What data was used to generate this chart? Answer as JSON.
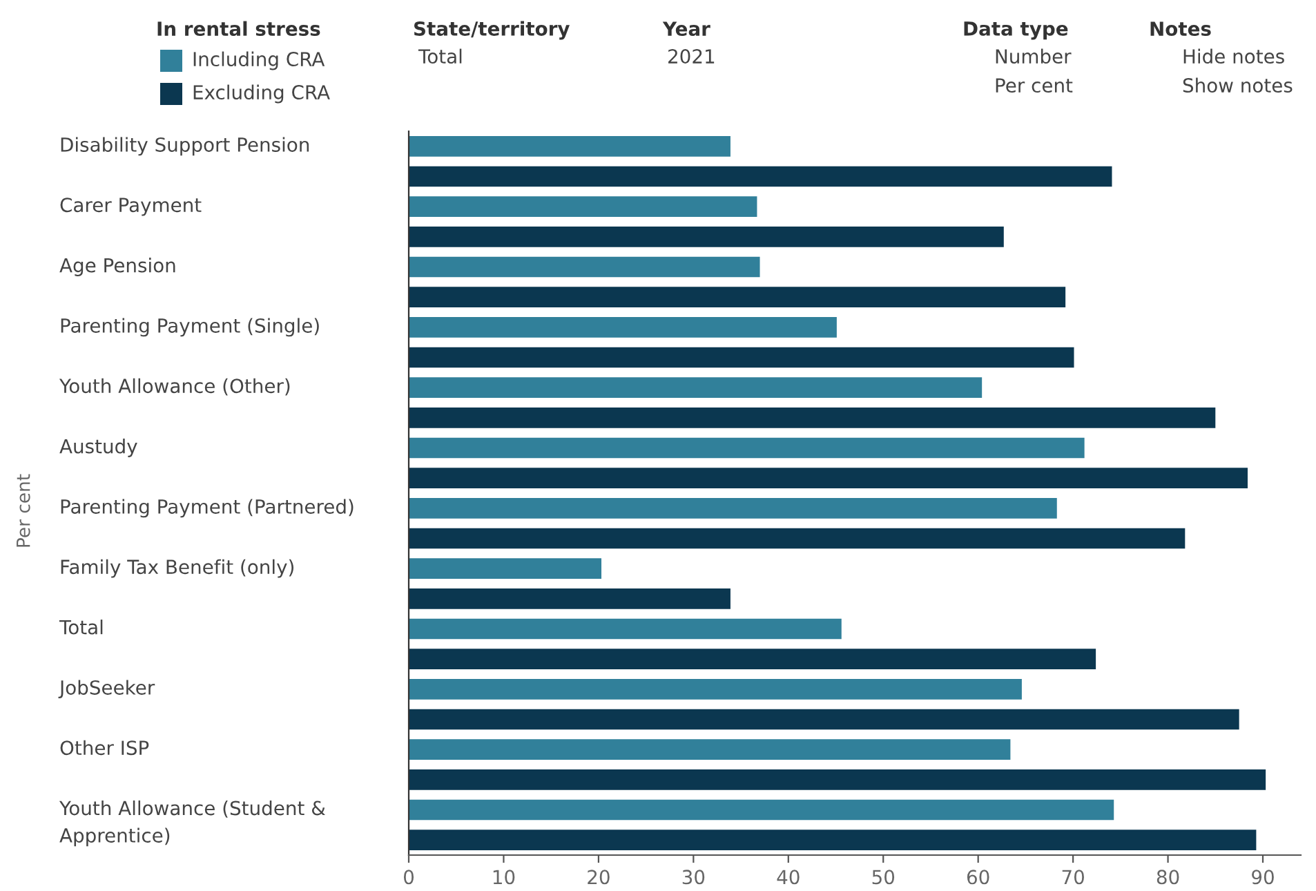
{
  "chart_data": {
    "type": "bar",
    "orientation": "horizontal",
    "ylabel": "Per cent",
    "legend_title": "In rental stress",
    "legend": "top left",
    "categories": [
      "Disability Support Pension",
      "Carer Payment",
      "Age Pension",
      "Parenting Payment (Single)",
      "Youth Allowance (Other)",
      "Austudy",
      "Parenting Payment (Partnered)",
      "Family Tax Benefit (only)",
      "Total",
      "JobSeeker",
      "Other ISP",
      "Youth Allowance (Student &\nApprentice)"
    ],
    "series": [
      {
        "name": "Including CRA",
        "color": "#31809a",
        "values": [
          33.9,
          36.7,
          37.0,
          45.1,
          60.4,
          71.2,
          68.3,
          20.3,
          45.6,
          64.6,
          63.4,
          74.3
        ]
      },
      {
        "name": "Excluding CRA",
        "color": "#0b3750",
        "values": [
          74.1,
          62.7,
          69.2,
          70.1,
          85.0,
          88.4,
          81.8,
          33.9,
          72.4,
          87.5,
          90.3,
          89.3
        ]
      }
    ],
    "xlim": [
      0,
      94
    ],
    "xticks": [
      0,
      10,
      20,
      30,
      40,
      50,
      60,
      70,
      80,
      90
    ],
    "grid": false,
    "annotations": [
      "State/territory",
      "Total",
      "Year",
      "2021",
      "Data type",
      "Number",
      "Per cent",
      "Notes",
      "Hide notes",
      "Show notes"
    ]
  }
}
